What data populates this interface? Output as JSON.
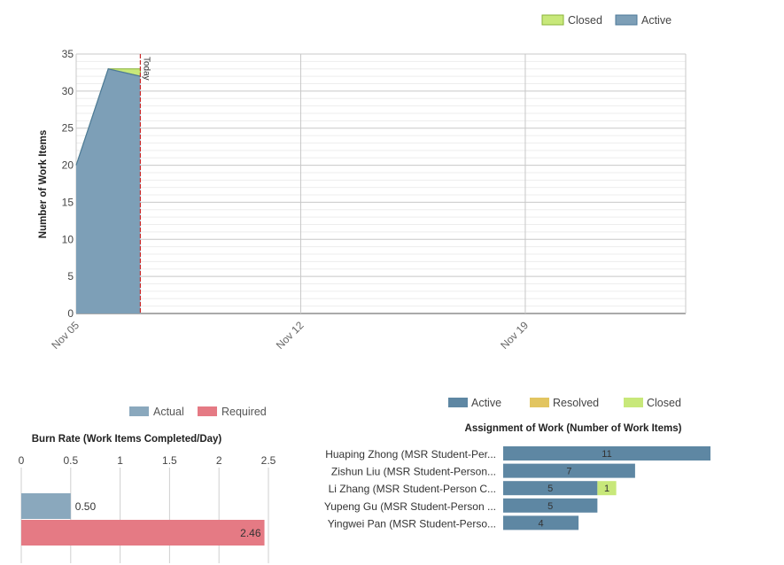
{
  "chart_data": [
    {
      "type": "area",
      "ylabel": "Number of Work Items",
      "ylim": [
        0,
        35
      ],
      "yticks": [
        0,
        5,
        10,
        15,
        20,
        25,
        30,
        35
      ],
      "xlim": [
        "2023-11-05",
        "2023-11-24"
      ],
      "xticks": [
        {
          "label": "Nov 05",
          "date": "2023-11-05"
        },
        {
          "label": "Nov 12",
          "date": "2023-11-12"
        },
        {
          "label": "Nov 19",
          "date": "2023-11-19"
        }
      ],
      "legend_position": "top-right",
      "legend": [
        {
          "name": "Closed",
          "color": "#c8e87a"
        },
        {
          "name": "Active",
          "color": "#7d9fb7"
        }
      ],
      "x": [
        "2023-11-05",
        "2023-11-06",
        "2023-11-07"
      ],
      "series": [
        {
          "name": "Active",
          "values": [
            20,
            33,
            32
          ],
          "color": "#7d9fb7",
          "line": "#4d7a98"
        },
        {
          "name": "Closed",
          "values": [
            0,
            0,
            1
          ],
          "color": "#c8e87a",
          "line": "#8ab33a"
        }
      ],
      "today_marker": {
        "label": "Today",
        "date": "2023-11-07"
      },
      "grid": true
    },
    {
      "type": "bar",
      "orientation": "horizontal",
      "title": "Burn Rate (Work Items Completed/Day)",
      "xlim": [
        0,
        2.5
      ],
      "xticks": [
        "0",
        "0.5",
        "1",
        "1.5",
        "2",
        "2.5"
      ],
      "legend_position": "top",
      "categories": [
        "Actual",
        "Required"
      ],
      "series": [
        {
          "name": "Actual",
          "value": 0.5,
          "label": "0.50",
          "color": "#8aa8bd"
        },
        {
          "name": "Required",
          "value": 2.46,
          "label": "2.46",
          "color": "#e57a84"
        }
      ]
    },
    {
      "type": "bar",
      "orientation": "horizontal",
      "stacked": true,
      "title": "Assignment of Work (Number of Work Items)",
      "xlim": [
        0,
        11
      ],
      "legend_position": "top",
      "legend": [
        {
          "name": "Active",
          "color": "#5e87a3"
        },
        {
          "name": "Resolved",
          "color": "#e2c560"
        },
        {
          "name": "Closed",
          "color": "#c8e87a"
        }
      ],
      "categories": [
        "Huaping Zhong (MSR Student-Per...",
        "Zishun Liu (MSR Student-Person...",
        "Li Zhang (MSR Student-Person C...",
        "Yupeng Gu (MSR Student-Person ...",
        "Yingwei Pan (MSR Student-Perso..."
      ],
      "series": [
        {
          "name": "Active",
          "values": [
            11,
            7,
            5,
            5,
            4
          ],
          "color": "#5e87a3"
        },
        {
          "name": "Resolved",
          "values": [
            0,
            0,
            0,
            0,
            0
          ],
          "color": "#e2c560"
        },
        {
          "name": "Closed",
          "values": [
            0,
            0,
            1,
            0,
            0
          ],
          "color": "#c8e87a"
        }
      ]
    }
  ]
}
